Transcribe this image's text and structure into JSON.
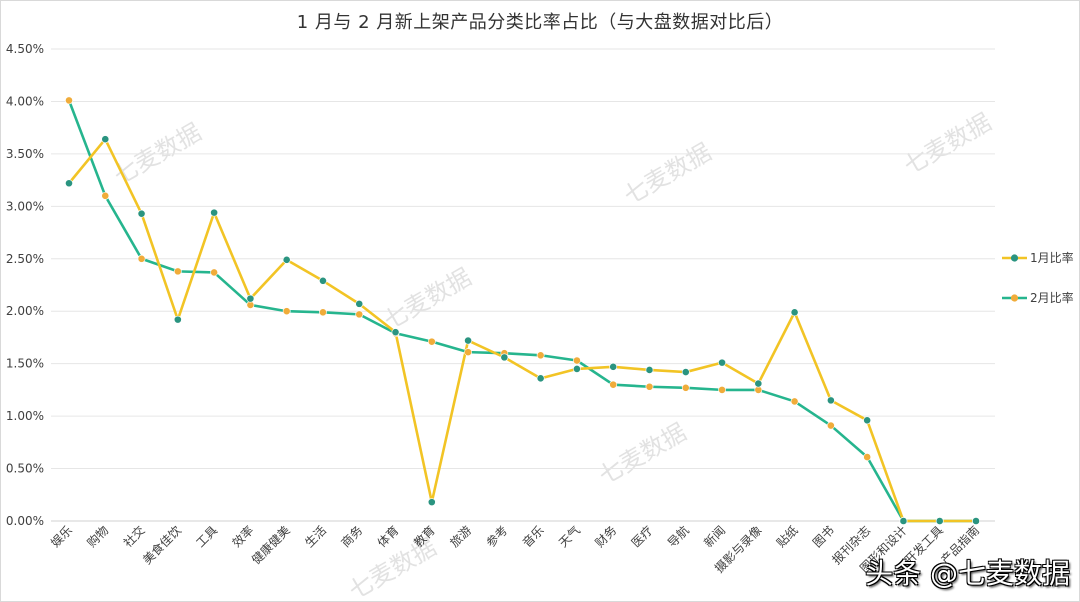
{
  "chart_data": {
    "type": "line",
    "title": "1 月与 2 月新上架产品分类比率占比（与大盘数据对比后）",
    "xlabel": "",
    "ylabel": "",
    "ylim": [
      0,
      0.045
    ],
    "y_ticks": [
      "0.00%",
      "0.50%",
      "1.00%",
      "1.50%",
      "2.00%",
      "2.50%",
      "3.00%",
      "3.50%",
      "4.00%",
      "4.50%"
    ],
    "grid": true,
    "legend_position": "right",
    "categories": [
      "娱乐",
      "购物",
      "社交",
      "美食佳饮",
      "工具",
      "效率",
      "健康健美",
      "生活",
      "商务",
      "体育",
      "教育",
      "旅游",
      "参考",
      "音乐",
      "天气",
      "财务",
      "医疗",
      "导航",
      "新闻",
      "摄影与录像",
      "贴纸",
      "图书",
      "报刊杂志",
      "图形和设计",
      "开发工具",
      "产品指南"
    ],
    "series": [
      {
        "name": "1月比率",
        "line_color": "#f2c425",
        "marker_color": "#2a9480",
        "values": [
          3.22,
          3.64,
          2.93,
          1.92,
          2.94,
          2.12,
          2.49,
          2.29,
          2.07,
          1.8,
          0.18,
          1.72,
          1.56,
          1.36,
          1.45,
          1.47,
          1.44,
          1.42,
          1.51,
          1.31,
          1.99,
          1.15,
          0.96,
          0.0,
          0.0,
          0.0
        ]
      },
      {
        "name": "2月比率",
        "line_color": "#26b58e",
        "marker_color": "#f0ac3a",
        "values": [
          4.01,
          3.1,
          2.5,
          2.38,
          2.37,
          2.06,
          2.0,
          1.99,
          1.97,
          1.79,
          1.71,
          1.61,
          1.6,
          1.58,
          1.53,
          1.3,
          1.28,
          1.27,
          1.25,
          1.25,
          1.14,
          0.91,
          0.61,
          0.0,
          0.0,
          0.0
        ]
      }
    ]
  },
  "watermark": "七麦数据",
  "footer": "头条 @七麦数据"
}
